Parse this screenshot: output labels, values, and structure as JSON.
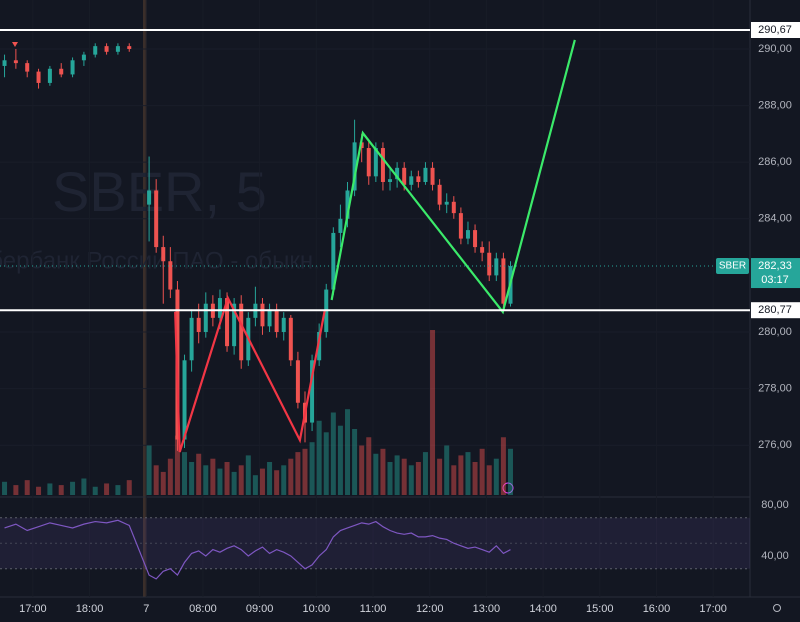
{
  "chart_data": {
    "type": "candlestick",
    "watermark": "SBER, 5",
    "watermark_subtitle": "Сбербанк России ПАО - обыкн.",
    "xlim": [
      16.42,
      29.65
    ],
    "xticks": [
      {
        "value": 17,
        "label": "17:00"
      },
      {
        "value": 18,
        "label": "18:00"
      },
      {
        "value": 19,
        "label": "7"
      },
      {
        "value": 20,
        "label": "08:00"
      },
      {
        "value": 21,
        "label": "09:00"
      },
      {
        "value": 22,
        "label": "10:00"
      },
      {
        "value": 23,
        "label": "11:00"
      },
      {
        "value": 24,
        "label": "12:00"
      },
      {
        "value": 25,
        "label": "13:00"
      },
      {
        "value": 26,
        "label": "14:00"
      },
      {
        "value": 27,
        "label": "15:00"
      },
      {
        "value": 28,
        "label": "16:00"
      },
      {
        "value": 29,
        "label": "17:00"
      }
    ],
    "ylim": [
      274.17,
      291.73
    ],
    "yticks": [
      {
        "value": 276,
        "label": "276,00"
      },
      {
        "value": 278,
        "label": "278,00"
      },
      {
        "value": 280,
        "label": "280,00"
      },
      {
        "value": 284,
        "label": "284,00"
      },
      {
        "value": 286,
        "label": "286,00"
      },
      {
        "value": 288,
        "label": "288,00"
      },
      {
        "value": 290,
        "label": "290,00"
      }
    ],
    "up_color": "#26a69a",
    "down_color": "#ef5350",
    "x": [
      16.5,
      16.7,
      16.9,
      17.1,
      17.3,
      17.5,
      17.7,
      17.9,
      18.1,
      18.3,
      18.5,
      18.7,
      19.05,
      19.175,
      19.3,
      19.425,
      19.55,
      19.675,
      19.8,
      19.925,
      20.05,
      20.175,
      20.3,
      20.425,
      20.55,
      20.675,
      20.8,
      20.925,
      21.05,
      21.175,
      21.3,
      21.425,
      21.55,
      21.675,
      21.8,
      21.925,
      22.05,
      22.175,
      22.3,
      22.425,
      22.55,
      22.675,
      22.8,
      22.925,
      23.05,
      23.175,
      23.3,
      23.425,
      23.55,
      23.675,
      23.8,
      23.925,
      24.05,
      24.175,
      24.3,
      24.425,
      24.55,
      24.675,
      24.8,
      24.925,
      25.05,
      25.175,
      25.3,
      25.425
    ],
    "open": [
      289.4,
      289.6,
      289.5,
      289.2,
      288.8,
      289.3,
      289.1,
      289.6,
      289.8,
      290.1,
      289.9,
      290.1,
      284.5,
      285.0,
      283.0,
      282.5,
      281.5,
      276.2,
      279.0,
      280.5,
      280.0,
      281.0,
      280.5,
      281.2,
      279.5,
      281.0,
      279.0,
      280.5,
      281.0,
      280.2,
      280.8,
      280.0,
      280.5,
      279.0,
      277.5,
      276.8,
      279.0,
      280.0,
      281.5,
      283.5,
      284.0,
      285.0,
      286.7,
      286.5,
      285.5,
      286.5,
      285.3,
      285.4,
      285.8,
      285.2,
      285.5,
      285.3,
      285.8,
      285.2,
      284.5,
      284.6,
      284.2,
      283.3,
      283.6,
      283.0,
      282.8,
      282.0,
      282.6,
      281.0
    ],
    "high": [
      289.8,
      290.0,
      289.6,
      289.3,
      289.4,
      289.5,
      289.7,
      289.9,
      290.2,
      290.2,
      290.2,
      290.2,
      286.2,
      285.4,
      283.4,
      283.0,
      281.8,
      279.2,
      280.8,
      281.0,
      281.4,
      281.3,
      281.5,
      281.4,
      281.2,
      281.3,
      280.7,
      281.6,
      281.2,
      281.0,
      281.0,
      280.7,
      280.6,
      279.3,
      277.9,
      279.2,
      280.3,
      281.7,
      283.7,
      284.5,
      285.3,
      287.5,
      287.0,
      286.8,
      286.7,
      286.7,
      285.8,
      286.0,
      286.0,
      285.7,
      285.7,
      286.0,
      286.0,
      285.4,
      284.9,
      284.8,
      284.4,
      283.9,
      283.8,
      283.2,
      283.2,
      282.8,
      282.8,
      282.5
    ],
    "low": [
      289.0,
      289.3,
      289.0,
      288.6,
      288.7,
      289.0,
      289.0,
      289.4,
      289.7,
      289.8,
      289.8,
      289.9,
      283.2,
      282.8,
      281.0,
      281.2,
      275.8,
      275.9,
      278.6,
      279.6,
      279.8,
      280.2,
      280.1,
      279.3,
      279.2,
      278.7,
      278.8,
      280.2,
      279.9,
      280.0,
      279.8,
      279.7,
      278.8,
      277.3,
      276.1,
      276.5,
      278.8,
      279.8,
      281.3,
      283.0,
      283.7,
      284.8,
      286.0,
      285.2,
      285.3,
      285.0,
      285.0,
      285.1,
      285.0,
      285.0,
      285.1,
      285.2,
      285.0,
      284.3,
      284.2,
      284.0,
      283.1,
      283.1,
      282.8,
      282.5,
      281.8,
      281.8,
      280.8,
      280.9
    ],
    "close": [
      289.6,
      289.5,
      289.2,
      288.8,
      289.3,
      289.1,
      289.6,
      289.8,
      290.1,
      289.9,
      290.1,
      290.0,
      285.0,
      283.0,
      282.5,
      281.5,
      276.2,
      279.0,
      280.5,
      280.0,
      281.0,
      280.5,
      281.2,
      279.5,
      281.0,
      279.0,
      280.5,
      281.0,
      280.2,
      280.8,
      280.0,
      280.5,
      279.0,
      277.5,
      276.8,
      279.0,
      280.0,
      281.5,
      283.5,
      284.0,
      285.0,
      286.7,
      286.5,
      285.5,
      286.5,
      285.3,
      285.4,
      285.8,
      285.2,
      285.5,
      285.3,
      285.8,
      285.2,
      284.5,
      284.6,
      284.2,
      283.3,
      283.6,
      283.0,
      282.8,
      282.0,
      282.6,
      281.0,
      282.33
    ],
    "volume": [
      8,
      6,
      9,
      5,
      7,
      6,
      8,
      10,
      5,
      7,
      6,
      9,
      30,
      18,
      14,
      22,
      36,
      26,
      20,
      25,
      18,
      22,
      16,
      20,
      14,
      18,
      24,
      12,
      16,
      20,
      15,
      18,
      22,
      26,
      28,
      32,
      45,
      38,
      50,
      42,
      52,
      40,
      30,
      35,
      25,
      28,
      20,
      24,
      22,
      18,
      20,
      26,
      100,
      22,
      30,
      18,
      24,
      26,
      20,
      28,
      18,
      22,
      35,
      28
    ],
    "hlines": [
      {
        "value": 290.67,
        "label": "290,67",
        "color": "#ffffff"
      },
      {
        "value": 280.77,
        "label": "280,77",
        "color": "#ffffff"
      }
    ],
    "last": {
      "symbol": "SBER",
      "value": 282.33,
      "label": "282,33",
      "countdown": "03:17",
      "color": "#26a69a"
    },
    "drawings": [
      {
        "color": "#f23645",
        "x": [
          19.51,
          19.59,
          20.44,
          21.71,
          22.15
        ],
        "y": [
          280.71,
          275.76,
          281.2,
          276.18,
          280.78
        ]
      },
      {
        "color": "#3bea6a",
        "x": [
          22.27,
          22.82,
          25.29,
          26.56
        ],
        "y": [
          281.13,
          287.03,
          280.71,
          290.32
        ]
      }
    ],
    "rsi": {
      "color": "#7e57c2",
      "values": [
        62,
        65,
        60,
        63,
        66,
        64,
        62,
        65,
        67,
        66,
        68,
        64,
        25,
        22,
        28,
        30,
        25,
        35,
        42,
        44,
        40,
        45,
        43,
        46,
        48,
        45,
        40,
        44,
        47,
        42,
        45,
        43,
        40,
        35,
        30,
        33,
        40,
        45,
        55,
        60,
        62,
        64,
        66,
        65,
        67,
        63,
        60,
        58,
        57,
        58,
        55,
        55,
        56,
        54,
        53,
        50,
        48,
        46,
        47,
        45,
        43,
        48,
        42,
        45
      ],
      "ylim": [
        13.3,
        86.3
      ],
      "yticks": [
        {
          "value": 80,
          "label": "80,00"
        },
        {
          "value": 40,
          "label": "40,00"
        }
      ],
      "band": [
        30,
        70
      ],
      "mid": 50
    }
  }
}
